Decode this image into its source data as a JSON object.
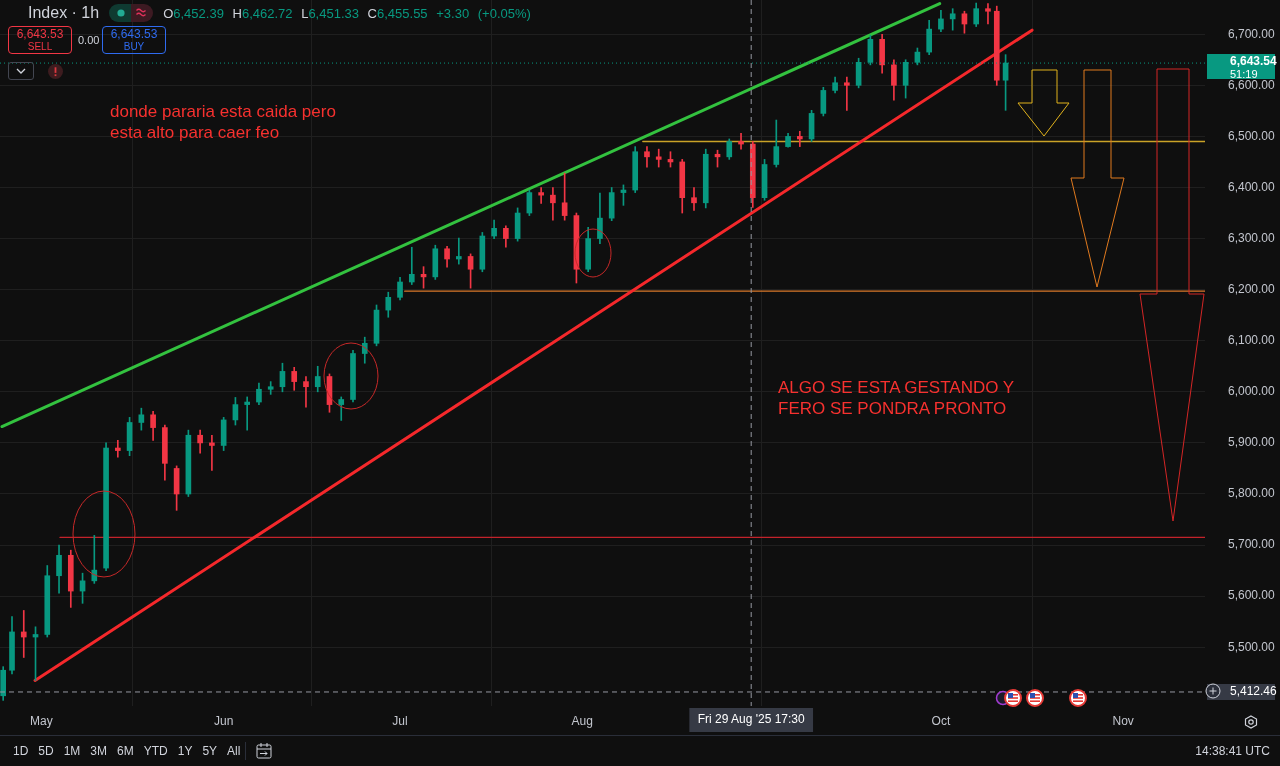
{
  "chart_data": {
    "type": "candlestick",
    "title": "Index · 1h",
    "subtitle": "O6,452.39 H6,462.72 L6,451.33 C6,455.55 +3.30 (+0.05%)",
    "series": [
      {
        "type": "candlestick",
        "x": [
          "2025-04-24T12:00",
          "2025-04-26",
          "2025-04-28",
          "2025-04-30",
          "2025-05-02",
          "2025-05-04",
          "2025-05-06",
          "2025-05-08",
          "2025-05-10",
          "2025-05-12",
          "2025-05-14",
          "2025-05-16",
          "2025-05-18",
          "2025-05-20",
          "2025-05-22",
          "2025-05-24",
          "2025-05-26",
          "2025-05-28",
          "2025-05-30",
          "2025-06-01",
          "2025-06-03",
          "2025-06-05",
          "2025-06-07",
          "2025-06-09",
          "2025-06-11",
          "2025-06-13",
          "2025-06-15",
          "2025-06-17",
          "2025-06-19",
          "2025-06-21",
          "2025-06-23",
          "2025-06-25",
          "2025-06-27",
          "2025-06-29",
          "2025-07-01",
          "2025-07-03",
          "2025-07-05",
          "2025-07-07",
          "2025-07-09",
          "2025-07-11",
          "2025-07-13",
          "2025-07-15",
          "2025-07-17",
          "2025-07-19",
          "2025-07-21",
          "2025-07-23",
          "2025-07-25",
          "2025-07-27",
          "2025-07-29",
          "2025-07-31",
          "2025-08-02",
          "2025-08-04",
          "2025-08-06",
          "2025-08-08",
          "2025-08-10",
          "2025-08-12",
          "2025-08-14",
          "2025-08-16",
          "2025-08-18",
          "2025-08-20",
          "2025-08-22",
          "2025-08-24",
          "2025-08-26",
          "2025-08-28",
          "2025-08-30",
          "2025-09-01",
          "2025-09-03",
          "2025-09-05",
          "2025-09-07",
          "2025-09-09",
          "2025-09-11",
          "2025-09-13",
          "2025-09-15",
          "2025-09-17",
          "2025-09-19",
          "2025-09-21",
          "2025-09-23",
          "2025-09-25",
          "2025-09-27",
          "2025-09-29",
          "2025-10-01",
          "2025-10-03",
          "2025-10-05",
          "2025-10-07",
          "2025-10-09",
          "2025-10-10T12:00",
          "2025-10-12"
        ],
        "ohlc": [
          [
            5405,
            5462,
            5396,
            5455
          ],
          [
            5455,
            5560,
            5448,
            5530
          ],
          [
            5530,
            5572,
            5480,
            5520
          ],
          [
            5520,
            5540,
            5435,
            5525
          ],
          [
            5525,
            5660,
            5520,
            5640
          ],
          [
            5640,
            5700,
            5606,
            5680
          ],
          [
            5680,
            5690,
            5578,
            5610
          ],
          [
            5610,
            5645,
            5586,
            5630
          ],
          [
            5630,
            5719,
            5625,
            5651
          ],
          [
            5655,
            5900,
            5650,
            5890
          ],
          [
            5890,
            5905,
            5872,
            5885
          ],
          [
            5885,
            5950,
            5875,
            5940
          ],
          [
            5940,
            5968,
            5925,
            5955
          ],
          [
            5955,
            5962,
            5905,
            5930
          ],
          [
            5930,
            5935,
            5827,
            5860
          ],
          [
            5850,
            5855,
            5768,
            5800
          ],
          [
            5800,
            5925,
            5795,
            5915
          ],
          [
            5915,
            5925,
            5880,
            5900
          ],
          [
            5900,
            5915,
            5846,
            5895
          ],
          [
            5895,
            5950,
            5885,
            5945
          ],
          [
            5945,
            5989,
            5935,
            5975
          ],
          [
            5975,
            5990,
            5925,
            5980
          ],
          [
            5980,
            6017,
            5975,
            6005
          ],
          [
            6005,
            6020,
            5995,
            6010
          ],
          [
            6010,
            6056,
            6000,
            6040
          ],
          [
            6040,
            6048,
            6003,
            6020
          ],
          [
            6020,
            6030,
            5970,
            6010
          ],
          [
            6010,
            6050,
            6000,
            6030
          ],
          [
            6030,
            6035,
            5960,
            5975
          ],
          [
            5975,
            5990,
            5944,
            5985
          ],
          [
            5985,
            6081,
            5980,
            6075
          ],
          [
            6075,
            6107,
            6056,
            6095
          ],
          [
            6095,
            6170,
            6090,
            6160
          ],
          [
            6160,
            6195,
            6146,
            6185
          ],
          [
            6185,
            6224,
            6180,
            6215
          ],
          [
            6215,
            6283,
            6210,
            6230
          ],
          [
            6230,
            6245,
            6203,
            6225
          ],
          [
            6225,
            6287,
            6220,
            6280
          ],
          [
            6280,
            6285,
            6244,
            6260
          ],
          [
            6260,
            6301,
            6250,
            6265
          ],
          [
            6265,
            6270,
            6203,
            6240
          ],
          [
            6240,
            6312,
            6235,
            6305
          ],
          [
            6305,
            6336,
            6300,
            6320
          ],
          [
            6320,
            6325,
            6283,
            6300
          ],
          [
            6300,
            6360,
            6295,
            6350
          ],
          [
            6350,
            6395,
            6345,
            6390
          ],
          [
            6390,
            6400,
            6369,
            6385
          ],
          [
            6385,
            6400,
            6336,
            6370
          ],
          [
            6370,
            6428,
            6336,
            6345
          ],
          [
            6345,
            6350,
            6213,
            6240
          ],
          [
            6240,
            6322,
            6235,
            6300
          ],
          [
            6300,
            6389,
            6290,
            6340
          ],
          [
            6340,
            6400,
            6335,
            6390
          ],
          [
            6390,
            6405,
            6365,
            6395
          ],
          [
            6395,
            6480,
            6390,
            6470
          ],
          [
            6470,
            6480,
            6440,
            6460
          ],
          [
            6460,
            6475,
            6440,
            6455
          ],
          [
            6455,
            6470,
            6440,
            6450
          ],
          [
            6450,
            6455,
            6350,
            6380
          ],
          [
            6380,
            6400,
            6355,
            6370
          ],
          [
            6370,
            6475,
            6360,
            6465
          ],
          [
            6465,
            6473,
            6440,
            6460
          ],
          [
            6460,
            6495,
            6455,
            6490
          ],
          [
            6490,
            6506,
            6475,
            6485
          ],
          [
            6485,
            6490,
            6361,
            6380
          ],
          [
            6380,
            6455,
            6375,
            6445
          ],
          [
            6445,
            6532,
            6440,
            6480
          ],
          [
            6480,
            6506,
            6479,
            6500
          ],
          [
            6500,
            6510,
            6480,
            6495
          ],
          [
            6495,
            6551,
            6490,
            6545
          ],
          [
            6545,
            6596,
            6540,
            6590
          ],
          [
            6590,
            6616,
            6585,
            6605
          ],
          [
            6605,
            6616,
            6551,
            6600
          ],
          [
            6600,
            6653,
            6595,
            6645
          ],
          [
            6645,
            6698,
            6640,
            6690
          ],
          [
            6690,
            6700,
            6624,
            6640
          ],
          [
            6640,
            6650,
            6571,
            6600
          ],
          [
            6600,
            6650,
            6575,
            6645
          ],
          [
            6645,
            6673,
            6640,
            6665
          ],
          [
            6665,
            6727,
            6660,
            6710
          ],
          [
            6710,
            6747,
            6705,
            6730
          ],
          [
            6730,
            6750,
            6708,
            6740
          ],
          [
            6740,
            6745,
            6702,
            6720
          ],
          [
            6720,
            6761,
            6715,
            6750
          ],
          [
            6750,
            6760,
            6720,
            6745
          ],
          [
            6745,
            6755,
            6600,
            6610
          ],
          [
            6610,
            6660,
            6551,
            6643.54
          ]
        ],
        "colors": [
          "#089981",
          "#089981",
          "#f23645",
          "#089981",
          "#089981",
          "#089981",
          "#f23645",
          "#089981",
          "#089981",
          "#089981",
          "#f23645",
          "#089981",
          "#089981",
          "#f23645",
          "#f23645",
          "#f23645",
          "#089981",
          "#f23645",
          "#f23645",
          "#089981",
          "#089981",
          "#089981",
          "#089981",
          "#089981",
          "#089981",
          "#f23645",
          "#f23645",
          "#089981",
          "#f23645",
          "#089981",
          "#089981",
          "#089981",
          "#089981",
          "#089981",
          "#089981",
          "#089981",
          "#f23645",
          "#089981",
          "#f23645",
          "#089981",
          "#f23645",
          "#089981",
          "#089981",
          "#f23645",
          "#089981",
          "#089981",
          "#f23645",
          "#f23645",
          "#f23645",
          "#f23645",
          "#089981",
          "#089981",
          "#089981",
          "#089981",
          "#089981",
          "#f23645",
          "#f23645",
          "#f23645",
          "#f23645",
          "#f23645",
          "#089981",
          "#f23645",
          "#089981",
          "#f23645",
          "#f23645",
          "#089981",
          "#089981",
          "#089981",
          "#f23645",
          "#089981",
          "#089981",
          "#089981",
          "#f23645",
          "#089981",
          "#089981",
          "#f23645",
          "#f23645",
          "#089981",
          "#089981",
          "#089981",
          "#089981",
          "#089981",
          "#f23645",
          "#089981",
          "#f23645",
          "#f23645",
          "#089981"
        ]
      },
      {
        "type": "line",
        "color": "#33c23f",
        "x": [
          "2025-04-24T07:00",
          "2025-09-30T19:00"
        ],
        "values": [
          5932,
          6760
        ]
      },
      {
        "type": "line",
        "color": "#f5282b",
        "x": [
          "2025-04-29T22:00",
          "2025-10-16T12:00"
        ],
        "values": [
          5435,
          6708
        ]
      },
      {
        "type": "line",
        "color": "#c9a227",
        "x": [
          "2025-08-11T07:00",
          "2025-11-14T22:00"
        ],
        "values": [
          6490,
          6490
        ]
      },
      {
        "type": "line",
        "color": "#d9782a",
        "x": [
          "2025-07-01T19:00",
          "2025-11-14T22:00"
        ],
        "values": [
          6197,
          6197
        ]
      },
      {
        "type": "line",
        "color": "#c3232b",
        "x": [
          "2025-05-04T04:00",
          "2025-11-14T22:00"
        ],
        "values": [
          5715,
          5715
        ]
      }
    ],
    "xlim": [
      "2025-04-23T23:00",
      "2025-11-14T22:00"
    ],
    "xticks": [
      {
        "value": "2025-05-01",
        "label": "May"
      },
      {
        "value": "2025-06-01",
        "label": "Jun"
      },
      {
        "value": "2025-07-01",
        "label": "Jul"
      },
      {
        "value": "2025-08-01",
        "label": "Aug"
      },
      {
        "value": "2025-10-01",
        "label": "Oct"
      },
      {
        "value": "2025-11-01",
        "label": "Nov"
      }
    ],
    "ylim": [
      5385,
      6767
    ],
    "yticks": [
      {
        "value": 5500,
        "label": "5,500.00"
      },
      {
        "value": 5600,
        "label": "5,600.00"
      },
      {
        "value": 5700,
        "label": "5,700.00"
      },
      {
        "value": 5800,
        "label": "5,800.00"
      },
      {
        "value": 5900,
        "label": "5,900.00"
      },
      {
        "value": 6000,
        "label": "6,000.00"
      },
      {
        "value": 6100,
        "label": "6,100.00"
      },
      {
        "value": 6200,
        "label": "6,200.00"
      },
      {
        "value": 6300,
        "label": "6,300.00"
      },
      {
        "value": 6400,
        "label": "6,400.00"
      },
      {
        "value": 6500,
        "label": "6,500.00"
      },
      {
        "value": 6600,
        "label": "6,600.00"
      },
      {
        "value": 6700,
        "label": "6,700.00"
      }
    ],
    "ref_lines": [
      {
        "axis": "y",
        "value": 6643.54,
        "label": "6,643.54",
        "color": "#089981",
        "line_style": "dotted"
      },
      {
        "axis": "y",
        "value": 5412.46,
        "label": "5,412.46",
        "color": "#9598a1",
        "line_style": "dashed"
      },
      {
        "axis": "x",
        "value": "2025-08-29T17:30",
        "label": "Fri 29 Aug '25 17:30",
        "color": "#9598a1",
        "line_style": "dashed"
      }
    ],
    "annotations": [
      "6,643.53",
      "SELL",
      "0.00",
      "6,643.53",
      "BUY",
      "donde pararia esta caida pero\nesta alto para caer feo",
      "ALGO SE ESTA GESTANDO Y\nFERO SE PONDRA PRONTO",
      "51:19",
      "1D",
      "5D",
      "1M",
      "3M",
      "6M",
      "YTD",
      "1Y",
      "5Y",
      "All",
      "14:38:41 UTC"
    ],
    "grid": true
  }
}
